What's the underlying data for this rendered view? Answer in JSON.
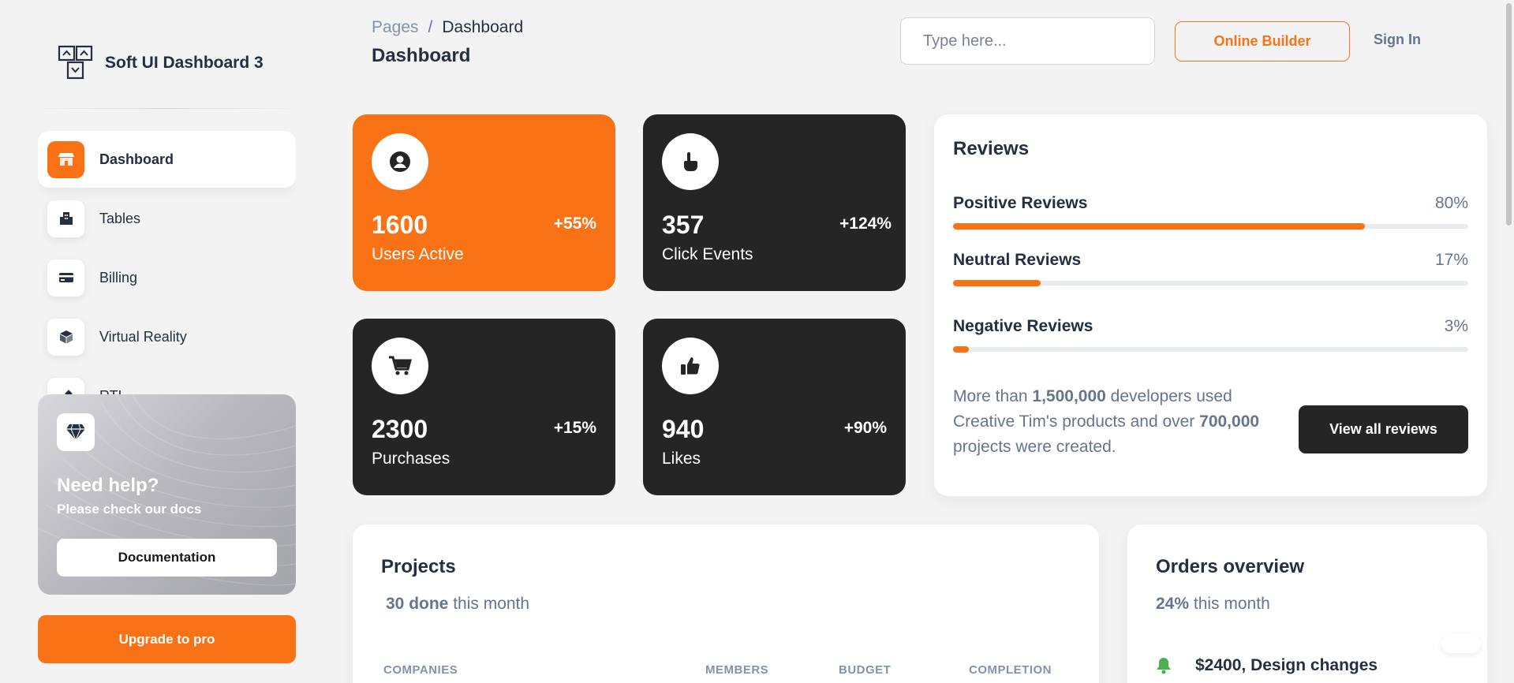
{
  "brand": {
    "name": "Soft UI Dashboard 3"
  },
  "sidebar": {
    "items": [
      {
        "label": "Dashboard",
        "icon": "shop-icon",
        "active": true
      },
      {
        "label": "Tables",
        "icon": "office-icon",
        "active": false
      },
      {
        "label": "Billing",
        "icon": "credit-card-icon",
        "active": false
      },
      {
        "label": "Virtual Reality",
        "icon": "box-icon",
        "active": false
      },
      {
        "label": "RTL",
        "icon": "settings-icon",
        "active": false
      }
    ],
    "help": {
      "title": "Need help?",
      "subtitle": "Please check our docs",
      "button": "Documentation",
      "icon": "diamond-icon"
    },
    "upgrade": "Upgrade to pro"
  },
  "header": {
    "breadcrumb": {
      "parent": "Pages",
      "separator": "/",
      "current": "Dashboard"
    },
    "title": "Dashboard",
    "search_placeholder": "Type here...",
    "online_builder": "Online Builder",
    "sign_in": "Sign In"
  },
  "stats": [
    {
      "value": "1600",
      "label": "Users Active",
      "change": "+55%",
      "icon": "user-circle-icon",
      "theme": "orange"
    },
    {
      "value": "357",
      "label": "Click Events",
      "change": "+124%",
      "icon": "pointer-hand-icon",
      "theme": "dark"
    },
    {
      "value": "2300",
      "label": "Purchases",
      "change": "+15%",
      "icon": "cart-icon",
      "theme": "dark"
    },
    {
      "value": "940",
      "label": "Likes",
      "change": "+90%",
      "icon": "thumbs-up-icon",
      "theme": "dark"
    }
  ],
  "reviews": {
    "title": "Reviews",
    "items": [
      {
        "name": "Positive Reviews",
        "percent": "80%",
        "value": 80
      },
      {
        "name": "Neutral Reviews",
        "percent": "17%",
        "value": 17
      },
      {
        "name": "Negative Reviews",
        "percent": "3%",
        "value": 3
      }
    ],
    "text": {
      "p1": "More than ",
      "b1": "1,500,000",
      "p2": " developers used Creative Tim's products and over ",
      "b2": "700,000",
      "p3": " projects were created."
    },
    "button": "View all reviews"
  },
  "projects": {
    "title": "Projects",
    "sub_bold": "30 done",
    "sub_rest": " this month",
    "columns": [
      "COMPANIES",
      "MEMBERS",
      "BUDGET",
      "COMPLETION"
    ]
  },
  "orders": {
    "title": "Orders overview",
    "sub_bold": "24%",
    "sub_rest": " this month",
    "item": {
      "text": "$2400, Design changes",
      "icon": "bell-icon",
      "color": "#4caf50"
    }
  },
  "colors": {
    "accent": "#f97316",
    "dark": "#252526",
    "text": "#252f40",
    "muted": "#67748e"
  }
}
